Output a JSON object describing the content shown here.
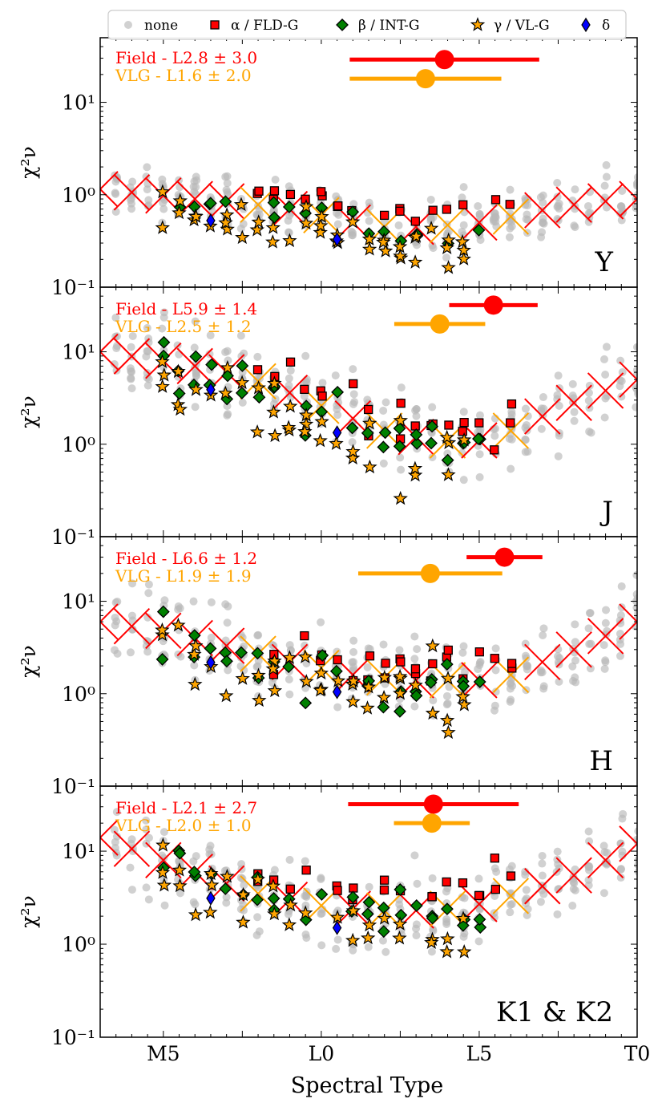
{
  "colors": {
    "field": "#ff0000",
    "vlg": "#ffa500",
    "none": "#b8b8b8",
    "alpha": "#ff0000",
    "beta": "#008000",
    "gamma": "#ffa500",
    "delta": "#0000ff"
  },
  "legend": [
    {
      "key": "none",
      "label": "none",
      "marker": "circle",
      "color": "#b8b8b8"
    },
    {
      "key": "alpha",
      "label": "α / FLD-G",
      "marker": "square",
      "color": "#ff0000"
    },
    {
      "key": "beta",
      "label": "β / INT-G",
      "marker": "diamond",
      "color": "#008000"
    },
    {
      "key": "gamma",
      "label": "γ / VL-G",
      "marker": "star",
      "color": "#ffa500"
    },
    {
      "key": "delta",
      "label": "δ",
      "marker": "thin-diamond",
      "color": "#0000ff"
    }
  ],
  "chart_data": {
    "type": "scatter",
    "xlabel": "Spectral Type",
    "ylabel": "χ²ν",
    "xlim": [
      -4,
      30
    ],
    "x_ticks": [
      {
        "value": 0,
        "label": "M5"
      },
      {
        "value": 10,
        "label": "L0"
      },
      {
        "value": 20,
        "label": "L5"
      },
      {
        "value": 30,
        "label": "T0"
      }
    ],
    "ylog": true,
    "y_ticks": [
      {
        "exp": 1,
        "label": "10¹"
      },
      {
        "exp": 0,
        "label": "10⁰"
      },
      {
        "exp": -1,
        "label": "10⁻¹"
      }
    ],
    "panels": [
      {
        "band": "Y",
        "ylim": [
          0.1,
          50
        ],
        "field_label": "Field - L2.8 ± 3.0",
        "vlg_label": "VLG - L1.6 ± 2.0",
        "field_best": {
          "center": 17.8,
          "error": 3.0,
          "y": 29
        },
        "vlg_best": {
          "center": 16.6,
          "error": 2.0,
          "y": 18
        },
        "baseline": [
          [
            -4,
            1.15
          ],
          [
            0,
            0.98
          ],
          [
            2,
            0.9
          ],
          [
            4,
            0.85
          ],
          [
            6,
            0.78
          ],
          [
            8,
            0.7
          ],
          [
            10,
            0.6
          ],
          [
            12,
            0.5
          ],
          [
            14,
            0.45
          ],
          [
            16,
            0.45
          ],
          [
            18,
            0.47
          ],
          [
            20,
            0.5
          ],
          [
            22,
            0.58
          ],
          [
            24,
            0.68
          ],
          [
            26,
            0.78
          ],
          [
            28,
            0.85
          ],
          [
            30,
            0.9
          ]
        ],
        "spread": 0.28
      },
      {
        "band": "J",
        "ylim": [
          0.1,
          50
        ],
        "field_label": "Field - L5.9 ± 1.4",
        "vlg_label": "VLG - L2.5 ± 1.2",
        "field_best": {
          "center": 20.9,
          "error": 1.4,
          "y": 32
        },
        "vlg_best": {
          "center": 17.5,
          "error": 1.2,
          "y": 20
        },
        "baseline": [
          [
            -4,
            10
          ],
          [
            0,
            8
          ],
          [
            2,
            7
          ],
          [
            4,
            6
          ],
          [
            6,
            4.8
          ],
          [
            8,
            3.6
          ],
          [
            10,
            2.6
          ],
          [
            12,
            1.9
          ],
          [
            14,
            1.4
          ],
          [
            16,
            1.2
          ],
          [
            18,
            1.1
          ],
          [
            20,
            1.1
          ],
          [
            22,
            1.4
          ],
          [
            24,
            2.0
          ],
          [
            26,
            2.8
          ],
          [
            28,
            3.8
          ],
          [
            30,
            5.0
          ]
        ],
        "spread": 0.45
      },
      {
        "band": "H",
        "ylim": [
          0.1,
          50
        ],
        "field_label": "Field - L6.6 ± 1.2",
        "vlg_label": "VLG - L1.9 ± 1.9",
        "field_best": {
          "center": 21.6,
          "error": 1.2,
          "y": 30
        },
        "vlg_best": {
          "center": 16.9,
          "error": 1.9,
          "y": 20
        },
        "baseline": [
          [
            -4,
            6
          ],
          [
            0,
            4.8
          ],
          [
            2,
            4.0
          ],
          [
            4,
            3.3
          ],
          [
            6,
            2.7
          ],
          [
            8,
            2.2
          ],
          [
            10,
            1.9
          ],
          [
            12,
            1.6
          ],
          [
            14,
            1.5
          ],
          [
            16,
            1.4
          ],
          [
            18,
            1.4
          ],
          [
            20,
            1.4
          ],
          [
            22,
            1.6
          ],
          [
            24,
            2.2
          ],
          [
            26,
            3.0
          ],
          [
            28,
            4.2
          ],
          [
            30,
            6.0
          ]
        ],
        "spread": 0.45
      },
      {
        "band": "K1 & K2",
        "ylim": [
          0.1,
          50
        ],
        "field_label": "Field - L2.1 ± 2.7",
        "vlg_label": "VLG - L2.0 ± 1.0",
        "field_best": {
          "center": 17.1,
          "error": 2.7,
          "y": 32
        },
        "vlg_best": {
          "center": 17.0,
          "error": 1.0,
          "y": 20
        },
        "baseline": [
          [
            -4,
            14
          ],
          [
            0,
            8
          ],
          [
            2,
            6
          ],
          [
            4,
            4.5
          ],
          [
            6,
            3.5
          ],
          [
            8,
            3.0
          ],
          [
            10,
            2.6
          ],
          [
            12,
            2.4
          ],
          [
            14,
            2.3
          ],
          [
            16,
            2.3
          ],
          [
            18,
            2.4
          ],
          [
            20,
            2.7
          ],
          [
            22,
            3.3
          ],
          [
            24,
            4.2
          ],
          [
            26,
            5.5
          ],
          [
            28,
            8
          ],
          [
            30,
            12
          ]
        ],
        "spread": 0.42
      }
    ]
  }
}
